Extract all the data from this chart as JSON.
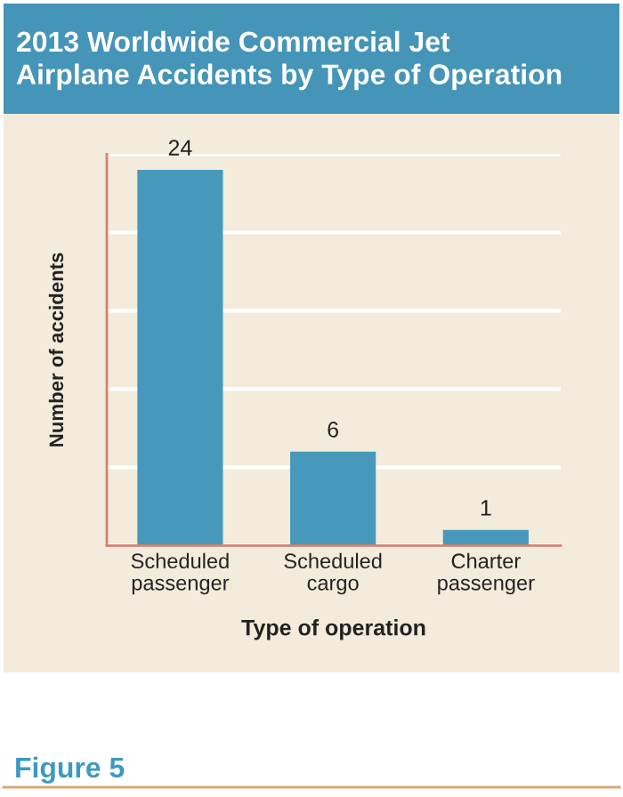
{
  "chart_data": {
    "type": "bar",
    "title": "2013 Worldwide Commercial Jet Airplane Accidents by Type of Operation",
    "xlabel": "Type of operation",
    "ylabel": "Number of accidents",
    "categories": [
      "Scheduled passenger",
      "Scheduled cargo",
      "Charter passenger"
    ],
    "values": [
      24,
      6,
      1
    ],
    "color": "#4699bb",
    "ylim": [
      0,
      25
    ],
    "yticks": [
      {
        "value": 0,
        "label": null
      },
      {
        "value": 5,
        "label": null
      },
      {
        "value": 10,
        "label": null
      },
      {
        "value": 15,
        "label": null
      },
      {
        "value": 20,
        "label": null
      },
      {
        "value": 25,
        "label": null
      }
    ],
    "grid": "y",
    "data_labels": true,
    "tick_labels": "x",
    "annotations": [
      "Figure 5"
    ]
  }
}
